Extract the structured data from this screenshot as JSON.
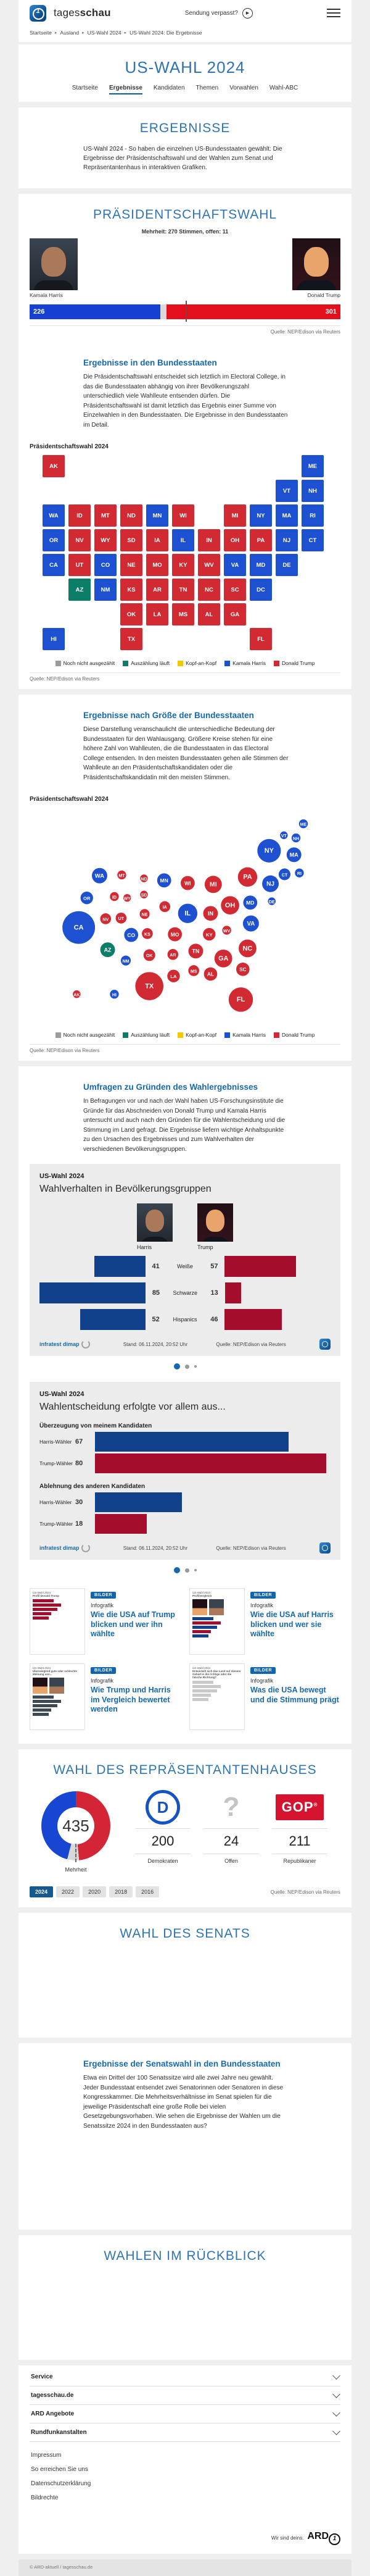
{
  "colors": {
    "dem": "#1e50d2",
    "rep": "#d22a32",
    "counting": "#0b7d68",
    "headtohead": "#f2c800",
    "uncounted": "#9c9c9c",
    "bar_dem": "#1540d2",
    "bar_rep": "#e30f1d",
    "bar_open": "#d9d9d9",
    "info_dem": "#12418c",
    "info_rep": "#a50d2d",
    "donut_dem": "#1746d2",
    "donut_rep": "#d32535",
    "donut_open": "#d8d8d8"
  },
  "header": {
    "brand_regular": "tages",
    "brand_bold": "schau",
    "missed_show": "Sendung verpasst?",
    "breadcrumb": [
      "Startseite",
      "Ausland",
      "US-Wahl 2024",
      "US-Wahl 2024: Die Ergebnisse"
    ]
  },
  "hero": {
    "title": "US-WAHL 2024",
    "tabs": [
      "Startseite",
      "Ergebnisse",
      "Kandidaten",
      "Themen",
      "Vorwahlen",
      "Wahl-ABC"
    ],
    "active_tab": "Ergebnisse"
  },
  "ergebnisse": {
    "title": "ERGEBNISSE",
    "intro": "US-Wahl 2024 - So haben die einzelnen US-Bundesstaaten gewählt: Die Ergebnisse der Präsidentschaftswahl und der Wahlen zum Senat und Repräsentantenhaus in interaktiven Grafiken."
  },
  "president": {
    "title": "PRÄSIDENTSCHAFTSWAHL",
    "majority_line": "Mehrheit: 270 Stimmen, offen: 11",
    "harris": {
      "name": "Kamala Harris",
      "votes": 226
    },
    "trump": {
      "name": "Donald Trump",
      "votes": 301
    },
    "open_votes": 11,
    "total": 538,
    "majority": 270,
    "source": "Quelle: NEP/Edison via Reuters",
    "states_head": "Ergebnisse in den Bundesstaaten",
    "states_text": "Die Präsidentschaftswahl entscheidet sich letztlich im Electoral College, in das die Bundesstaaten abhängig von ihrer Bevölkerungszahl unterschiedlich viele Wahlleute entsenden dürfen. Die Präsidentschaftswahl ist damit letztlich das Ergebnis einer Summe von Einzelwahlen in den Bundesstaaten. Die Ergebnisse in den Bundesstaaten im Detail.",
    "map_label": "Präsidentschaftswahl 2024",
    "size_head": "Ergebnisse nach Größe der Bundesstaaten",
    "size_text": "Diese Darstellung veranschaulicht die unterschiedliche Bedeutung der Bundesstaaten für den Wahlausgang. Größere Kreise stehen für eine höhere Zahl von Wahlleuten, die die Bundesstaaten in das Electoral College entsenden. In den meisten Bundesstaaten gehen alle Stimmen der Wahlleute an den Präsidentschaftskandidaten oder die Präsidentschaftskandidatin mit den meisten Stimmen.",
    "legend": [
      {
        "label": "Noch nicht ausgezählt",
        "color_key": "uncounted"
      },
      {
        "label": "Auszählung läuft",
        "color_key": "counting"
      },
      {
        "label": "Kopf-an-Kopf",
        "color_key": "headtohead"
      },
      {
        "label": "Kamala Harris",
        "color_key": "dem"
      },
      {
        "label": "Donald Trump",
        "color_key": "rep"
      }
    ]
  },
  "chart_data": [
    {
      "type": "map-tiles",
      "title": "Präsidentschaftswahl 2024",
      "states": [
        {
          "a": "AK",
          "c": 0,
          "r": 0,
          "w": "rep"
        },
        {
          "a": "ME",
          "c": 10,
          "r": 0,
          "w": "dem"
        },
        {
          "a": "VT",
          "c": 9,
          "r": 1,
          "w": "dem"
        },
        {
          "a": "NH",
          "c": 10,
          "r": 1,
          "w": "dem"
        },
        {
          "a": "WA",
          "c": 0,
          "r": 2,
          "w": "dem"
        },
        {
          "a": "ID",
          "c": 1,
          "r": 2,
          "w": "rep"
        },
        {
          "a": "MT",
          "c": 2,
          "r": 2,
          "w": "rep"
        },
        {
          "a": "ND",
          "c": 3,
          "r": 2,
          "w": "rep"
        },
        {
          "a": "MN",
          "c": 4,
          "r": 2,
          "w": "dem"
        },
        {
          "a": "WI",
          "c": 5,
          "r": 2,
          "w": "rep"
        },
        {
          "a": "MI",
          "c": 7,
          "r": 2,
          "w": "rep"
        },
        {
          "a": "NY",
          "c": 8,
          "r": 2,
          "w": "dem"
        },
        {
          "a": "MA",
          "c": 9,
          "r": 2,
          "w": "dem"
        },
        {
          "a": "RI",
          "c": 10,
          "r": 2,
          "w": "dem"
        },
        {
          "a": "OR",
          "c": 0,
          "r": 3,
          "w": "dem"
        },
        {
          "a": "NV",
          "c": 1,
          "r": 3,
          "w": "rep"
        },
        {
          "a": "WY",
          "c": 2,
          "r": 3,
          "w": "rep"
        },
        {
          "a": "SD",
          "c": 3,
          "r": 3,
          "w": "rep"
        },
        {
          "a": "IA",
          "c": 4,
          "r": 3,
          "w": "rep"
        },
        {
          "a": "IL",
          "c": 5,
          "r": 3,
          "w": "dem"
        },
        {
          "a": "IN",
          "c": 6,
          "r": 3,
          "w": "rep"
        },
        {
          "a": "OH",
          "c": 7,
          "r": 3,
          "w": "rep"
        },
        {
          "a": "PA",
          "c": 8,
          "r": 3,
          "w": "rep"
        },
        {
          "a": "NJ",
          "c": 9,
          "r": 3,
          "w": "dem"
        },
        {
          "a": "CT",
          "c": 10,
          "r": 3,
          "w": "dem"
        },
        {
          "a": "CA",
          "c": 0,
          "r": 4,
          "w": "dem"
        },
        {
          "a": "UT",
          "c": 1,
          "r": 4,
          "w": "rep"
        },
        {
          "a": "CO",
          "c": 2,
          "r": 4,
          "w": "dem"
        },
        {
          "a": "NE",
          "c": 3,
          "r": 4,
          "w": "rep"
        },
        {
          "a": "MO",
          "c": 4,
          "r": 4,
          "w": "rep"
        },
        {
          "a": "KY",
          "c": 5,
          "r": 4,
          "w": "rep"
        },
        {
          "a": "WV",
          "c": 6,
          "r": 4,
          "w": "rep"
        },
        {
          "a": "VA",
          "c": 7,
          "r": 4,
          "w": "dem"
        },
        {
          "a": "MD",
          "c": 8,
          "r": 4,
          "w": "dem"
        },
        {
          "a": "DE",
          "c": 9,
          "r": 4,
          "w": "dem"
        },
        {
          "a": "AZ",
          "c": 1,
          "r": 5,
          "w": "counting"
        },
        {
          "a": "NM",
          "c": 2,
          "r": 5,
          "w": "dem"
        },
        {
          "a": "KS",
          "c": 3,
          "r": 5,
          "w": "rep"
        },
        {
          "a": "AR",
          "c": 4,
          "r": 5,
          "w": "rep"
        },
        {
          "a": "TN",
          "c": 5,
          "r": 5,
          "w": "rep"
        },
        {
          "a": "NC",
          "c": 6,
          "r": 5,
          "w": "rep"
        },
        {
          "a": "SC",
          "c": 7,
          "r": 5,
          "w": "rep"
        },
        {
          "a": "DC",
          "c": 8,
          "r": 5,
          "w": "dem"
        },
        {
          "a": "OK",
          "c": 3,
          "r": 6,
          "w": "rep"
        },
        {
          "a": "LA",
          "c": 4,
          "r": 6,
          "w": "rep"
        },
        {
          "a": "MS",
          "c": 5,
          "r": 6,
          "w": "rep"
        },
        {
          "a": "AL",
          "c": 6,
          "r": 6,
          "w": "rep"
        },
        {
          "a": "GA",
          "c": 7,
          "r": 6,
          "w": "rep"
        },
        {
          "a": "HI",
          "c": 0,
          "r": 7,
          "w": "dem"
        },
        {
          "a": "TX",
          "c": 3,
          "r": 7,
          "w": "rep"
        },
        {
          "a": "FL",
          "c": 8,
          "r": 7,
          "w": "rep"
        }
      ]
    },
    {
      "type": "map-bubbles",
      "title": "Präsidentschaftswahl 2024",
      "states": [
        {
          "a": "CA",
          "x": 62,
          "y": 178,
          "ev": 54,
          "w": "dem"
        },
        {
          "a": "WA",
          "x": 93,
          "y": 101,
          "ev": 12,
          "w": "dem"
        },
        {
          "a": "OR",
          "x": 74,
          "y": 134,
          "ev": 8,
          "w": "dem"
        },
        {
          "a": "NV",
          "x": 102,
          "y": 165,
          "ev": 6,
          "w": "rep"
        },
        {
          "a": "ID",
          "x": 115,
          "y": 132,
          "ev": 4,
          "w": "rep"
        },
        {
          "a": "MT",
          "x": 126,
          "y": 100,
          "ev": 4,
          "w": "rep"
        },
        {
          "a": "WY",
          "x": 134,
          "y": 134,
          "ev": 3,
          "w": "rep"
        },
        {
          "a": "UT",
          "x": 125,
          "y": 164,
          "ev": 6,
          "w": "rep"
        },
        {
          "a": "AZ",
          "x": 105,
          "y": 211,
          "ev": 11,
          "w": "counting"
        },
        {
          "a": "NM",
          "x": 132,
          "y": 227,
          "ev": 5,
          "w": "dem"
        },
        {
          "a": "CO",
          "x": 140,
          "y": 189,
          "ev": 10,
          "w": "dem"
        },
        {
          "a": "ND",
          "x": 159,
          "y": 105,
          "ev": 3,
          "w": "rep"
        },
        {
          "a": "SD",
          "x": 159,
          "y": 129,
          "ev": 3,
          "w": "rep"
        },
        {
          "a": "NE",
          "x": 160,
          "y": 158,
          "ev": 5,
          "w": "rep"
        },
        {
          "a": "KS",
          "x": 164,
          "y": 187,
          "ev": 6,
          "w": "rep"
        },
        {
          "a": "OK",
          "x": 167,
          "y": 219,
          "ev": 7,
          "w": "rep"
        },
        {
          "a": "TX",
          "x": 167,
          "y": 265,
          "ev": 40,
          "w": "rep"
        },
        {
          "a": "MN",
          "x": 189,
          "y": 108,
          "ev": 10,
          "w": "dem"
        },
        {
          "a": "IA",
          "x": 190,
          "y": 147,
          "ev": 6,
          "w": "rep"
        },
        {
          "a": "MO",
          "x": 205,
          "y": 188,
          "ev": 10,
          "w": "rep"
        },
        {
          "a": "AR",
          "x": 202,
          "y": 218,
          "ev": 6,
          "w": "rep"
        },
        {
          "a": "LA",
          "x": 203,
          "y": 250,
          "ev": 8,
          "w": "rep"
        },
        {
          "a": "WI",
          "x": 224,
          "y": 112,
          "ev": 10,
          "w": "rep"
        },
        {
          "a": "IL",
          "x": 224,
          "y": 157,
          "ev": 19,
          "w": "dem"
        },
        {
          "a": "MS",
          "x": 233,
          "y": 242,
          "ev": 6,
          "w": "rep"
        },
        {
          "a": "MI",
          "x": 262,
          "y": 114,
          "ev": 15,
          "w": "rep"
        },
        {
          "a": "IN",
          "x": 258,
          "y": 157,
          "ev": 11,
          "w": "rep"
        },
        {
          "a": "KY",
          "x": 256,
          "y": 188,
          "ev": 8,
          "w": "rep"
        },
        {
          "a": "TN",
          "x": 236,
          "y": 213,
          "ev": 11,
          "w": "rep"
        },
        {
          "a": "AL",
          "x": 258,
          "y": 247,
          "ev": 9,
          "w": "rep"
        },
        {
          "a": "OH",
          "x": 287,
          "y": 145,
          "ev": 17,
          "w": "rep"
        },
        {
          "a": "WV",
          "x": 282,
          "y": 182,
          "ev": 4,
          "w": "rep"
        },
        {
          "a": "GA",
          "x": 277,
          "y": 224,
          "ev": 16,
          "w": "rep"
        },
        {
          "a": "SC",
          "x": 306,
          "y": 240,
          "ev": 9,
          "w": "rep"
        },
        {
          "a": "NC",
          "x": 313,
          "y": 209,
          "ev": 16,
          "w": "rep"
        },
        {
          "a": "VA",
          "x": 318,
          "y": 172,
          "ev": 13,
          "w": "dem"
        },
        {
          "a": "MD",
          "x": 317,
          "y": 141,
          "ev": 10,
          "w": "dem"
        },
        {
          "a": "DE",
          "x": 349,
          "y": 139,
          "ev": 3,
          "w": "dem"
        },
        {
          "a": "PA",
          "x": 313,
          "y": 103,
          "ev": 19,
          "w": "rep"
        },
        {
          "a": "NJ",
          "x": 347,
          "y": 113,
          "ev": 14,
          "w": "dem"
        },
        {
          "a": "NY",
          "x": 345,
          "y": 64,
          "ev": 28,
          "w": "dem"
        },
        {
          "a": "CT",
          "x": 368,
          "y": 99,
          "ev": 7,
          "w": "dem"
        },
        {
          "a": "RI",
          "x": 390,
          "y": 97,
          "ev": 4,
          "w": "dem"
        },
        {
          "a": "MA",
          "x": 382,
          "y": 70,
          "ev": 11,
          "w": "dem"
        },
        {
          "a": "VT",
          "x": 367,
          "y": 41,
          "ev": 3,
          "w": "dem"
        },
        {
          "a": "NH",
          "x": 385,
          "y": 45,
          "ev": 4,
          "w": "dem"
        },
        {
          "a": "ME",
          "x": 396,
          "y": 24,
          "ev": 4,
          "w": "dem"
        },
        {
          "a": "AK",
          "x": 59,
          "y": 277,
          "ev": 3,
          "w": "rep"
        },
        {
          "a": "HI",
          "x": 115,
          "y": 277,
          "ev": 4,
          "w": "dem"
        },
        {
          "a": "FL",
          "x": 303,
          "y": 285,
          "ev": 30,
          "w": "rep"
        }
      ]
    },
    {
      "type": "bar",
      "title": "Wahlverhalten in Bevölkerungsgruppen",
      "categories": [
        "Weiße",
        "Schwarze",
        "Hispanics"
      ],
      "series": [
        {
          "name": "Harris",
          "values": [
            41,
            85,
            52
          ]
        },
        {
          "name": "Trump",
          "values": [
            57,
            13,
            46
          ]
        }
      ],
      "max": 85
    },
    {
      "type": "bar",
      "title": "Wahlentscheidung erfolgte vor allem aus...",
      "groups": [
        {
          "label": "Überzeugung von meinem Kandidaten",
          "rows": [
            {
              "label": "Harris-Wähler",
              "value": 67,
              "color_key": "info_dem"
            },
            {
              "label": "Trump-Wähler",
              "value": 80,
              "color_key": "info_rep"
            }
          ]
        },
        {
          "label": "Ablehnung des anderen Kandidaten",
          "rows": [
            {
              "label": "Harris-Wähler",
              "value": 30,
              "color_key": "info_dem"
            },
            {
              "label": "Trump-Wähler",
              "value": 18,
              "color_key": "info_rep"
            }
          ]
        }
      ],
      "max": 80
    },
    {
      "type": "pie",
      "title": "Wahl des Repräsentantenhauses",
      "total_label": "435",
      "values": [
        {
          "name": "Republikaner",
          "value": 211
        },
        {
          "name": "Offen",
          "value": 24
        },
        {
          "name": "Demokraten",
          "value": 200
        }
      ]
    }
  ],
  "umfragen": {
    "head": "Umfragen zu Gründen des Wahlergebnisses",
    "text": "In Befragungen vor und nach der Wahl haben US-Forschungsinstitute die Gründe für das Abschneiden von Donald Trump und Kamala Harris untersucht und auch nach den Gründen für die Wahlentscheidung und die Stimmung im Land gefragt. Die Ergebnisse liefern wichtige Anhaltspunkte zu den Ursachen des Ergebnisses und zum Wahlverhalten der verschiedenen Bevölkerungsgruppen.",
    "cardA": {
      "kicker": "US-Wahl 2024",
      "title": "Wahlverhalten in Bevölkerungsgruppen",
      "left_name": "Harris",
      "right_name": "Trump"
    },
    "cardB": {
      "kicker": "US-Wahl 2024",
      "title": "Wahlentscheidung erfolgte vor allem aus..."
    },
    "footer": {
      "brand": "infratest dimap",
      "stand": "Stand:  06.11.2024, 20:52 Uhr",
      "source": "Quelle: NEP/Edison via Reuters"
    }
  },
  "teasers": [
    {
      "badge": "BILDER",
      "kicker": "Infografik",
      "title": "Wie die USA auf Trump blicken und wer ihn wählte",
      "thumb_kicker": "US-Wahl 2024",
      "thumb_title": "Profil Donald Trump",
      "thumb_style": "red-bars"
    },
    {
      "badge": "BILDER",
      "kicker": "Infografik",
      "title": "Wie die USA auf Harris blicken und wer sie wählte",
      "thumb_kicker": "US-Wahl 2024",
      "thumb_title": "Profilvergleich",
      "thumb_style": "duo-bars"
    },
    {
      "badge": "BILDER",
      "kicker": "Infografik",
      "title": "Wie Trump und Harris im Vergleich bewertet werden",
      "thumb_kicker": "US-Wahl 2024",
      "thumb_title": "Überwiegend gute oder schlechte Meinung von...",
      "thumb_style": "photos-gray"
    },
    {
      "badge": "BILDER",
      "kicker": "Infografik",
      "title": "Was die USA bewegt und die Stimmung prägt",
      "thumb_kicker": "US-Wahl 2024",
      "thumb_title": "Entwickelt sich das Land auf diesem Gebiet in die richtige oder die falsche Richtung?",
      "thumb_style": "gray-bars"
    }
  ],
  "house": {
    "title": "WAHL DES REPRÄSENTANTENHAUSES",
    "total": "435",
    "mehrheit_label": "Mehrheit",
    "dem": {
      "num": "200",
      "label": "Demokraten"
    },
    "open": {
      "num": "24",
      "label": "Offen"
    },
    "rep": {
      "num": "211",
      "label": "Republikaner"
    },
    "gop_text": "GOP",
    "years": [
      "2024",
      "2022",
      "2020",
      "2018",
      "2016"
    ],
    "active_year": "2024",
    "source": "Quelle: NEP/Edison via Reuters"
  },
  "senate": {
    "title": "WAHL DES SENATS",
    "states_head": "Ergebnisse der Senatswahl in den Bundesstaaten",
    "states_text": "Etwa ein Drittel der 100 Senatssitze wird alle zwei Jahre neu gewählt. Jeder Bundesstaat entsendet zwei Senatorinnen oder Senatoren in diese Kongresskammer. Die Mehrheitsverhältnisse im Senat spielen für die jeweilige Präsidentschaft eine große Rolle bei vielen Gesetzgebungsvorhaben. Wie sehen die Ergebnisse der Wahlen um die Senatssitze 2024 in den Bundesstaaten aus?"
  },
  "rueckblick": {
    "title": "WAHLEN IM RÜCKBLICK"
  },
  "footer": {
    "accordions": [
      "Service",
      "tagesschau.de",
      "ARD Angebote",
      "Rundfunkanstalten"
    ],
    "links": [
      "Impressum",
      "So erreichen Sie uns",
      "Datenschutzerklärung",
      "Bildrechte"
    ],
    "ard_claim": "Wir sind deins.",
    "ard": "ARD",
    "copyright": "© ARD-aktuell / tagesschau.de"
  }
}
